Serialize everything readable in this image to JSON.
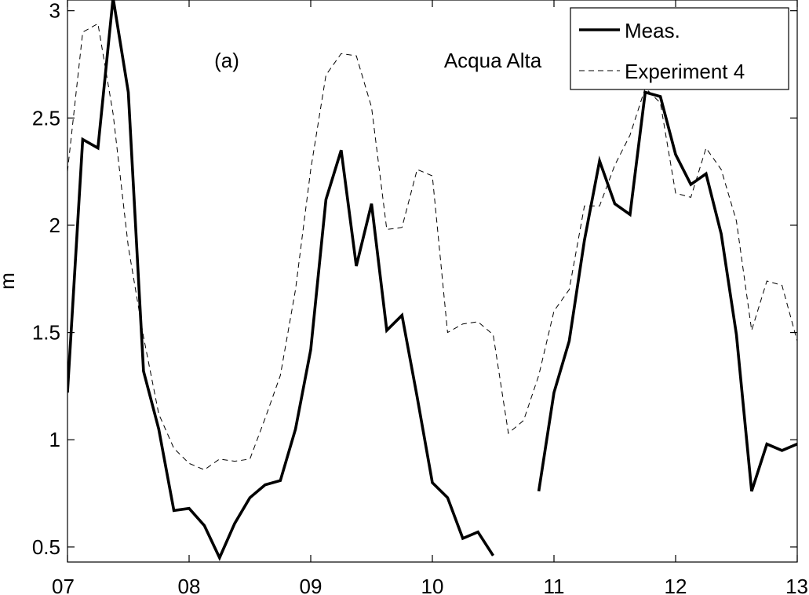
{
  "chart_data": {
    "type": "line",
    "annotations": [
      "(a)",
      "Acqua Alta"
    ],
    "xlabel": "",
    "ylabel": "m",
    "xlim": [
      7,
      13
    ],
    "ylim": [
      0.43,
      3.05
    ],
    "x_tick_labels": [
      "07",
      "08",
      "09",
      "10",
      "11",
      "12",
      "13"
    ],
    "y_tick_labels": [
      "0.5",
      "1",
      "1.5",
      "2",
      "2.5",
      "3"
    ],
    "y_tick_values": [
      0.5,
      1,
      1.5,
      2,
      2.5,
      3
    ],
    "grid": false,
    "legend": {
      "position": "top-right",
      "entries": [
        "Meas.",
        "Experiment 4"
      ]
    },
    "series": [
      {
        "name": "Meas.",
        "style": "solid-thick",
        "color": "#000000",
        "points": [
          [
            7.0,
            1.22
          ],
          [
            7.125,
            2.4
          ],
          [
            7.25,
            2.36
          ],
          [
            7.375,
            3.06
          ],
          [
            7.5,
            2.62
          ],
          [
            7.625,
            1.32
          ],
          [
            7.75,
            1.05
          ],
          [
            7.875,
            0.67
          ],
          [
            8.0,
            0.68
          ],
          [
            8.125,
            0.6
          ],
          [
            8.25,
            0.45
          ],
          [
            8.375,
            0.61
          ],
          [
            8.5,
            0.73
          ],
          [
            8.625,
            0.79
          ],
          [
            8.75,
            0.81
          ],
          [
            8.875,
            1.05
          ],
          [
            9.0,
            1.42
          ],
          [
            9.125,
            2.12
          ],
          [
            9.25,
            2.35
          ],
          [
            9.375,
            1.81
          ],
          [
            9.5,
            2.1
          ],
          [
            9.625,
            1.51
          ],
          [
            9.75,
            1.58
          ],
          [
            9.875,
            1.2
          ],
          [
            10.0,
            0.8
          ],
          [
            10.125,
            0.73
          ],
          [
            10.25,
            0.54
          ],
          [
            10.375,
            0.57
          ],
          [
            10.5,
            0.46
          ],
          null,
          [
            10.875,
            0.76
          ],
          [
            11.0,
            1.22
          ],
          [
            11.125,
            1.46
          ],
          [
            11.25,
            1.93
          ],
          [
            11.375,
            2.3
          ],
          [
            11.5,
            2.1
          ],
          [
            11.625,
            2.05
          ],
          [
            11.75,
            2.62
          ],
          [
            11.875,
            2.6
          ],
          [
            12.0,
            2.33
          ],
          [
            12.125,
            2.19
          ],
          [
            12.25,
            2.24
          ],
          [
            12.375,
            1.96
          ],
          [
            12.5,
            1.49
          ],
          [
            12.625,
            0.76
          ],
          [
            12.75,
            0.98
          ],
          [
            12.875,
            0.95
          ],
          [
            13.0,
            0.98
          ]
        ]
      },
      {
        "name": "Experiment 4",
        "style": "dashed-thin",
        "color": "#000000",
        "points": [
          [
            7.0,
            2.25
          ],
          [
            7.125,
            2.9
          ],
          [
            7.25,
            2.94
          ],
          [
            7.375,
            2.52
          ],
          [
            7.5,
            1.9
          ],
          [
            7.625,
            1.48
          ],
          [
            7.75,
            1.12
          ],
          [
            7.875,
            0.96
          ],
          [
            8.0,
            0.89
          ],
          [
            8.125,
            0.86
          ],
          [
            8.25,
            0.91
          ],
          [
            8.375,
            0.9
          ],
          [
            8.5,
            0.91
          ],
          [
            8.625,
            1.1
          ],
          [
            8.75,
            1.3
          ],
          [
            8.875,
            1.7
          ],
          [
            9.0,
            2.26
          ],
          [
            9.125,
            2.7
          ],
          [
            9.25,
            2.8
          ],
          [
            9.375,
            2.79
          ],
          [
            9.5,
            2.55
          ],
          [
            9.625,
            1.98
          ],
          [
            9.75,
            1.99
          ],
          [
            9.875,
            2.26
          ],
          [
            10.0,
            2.23
          ],
          [
            10.125,
            1.5
          ],
          [
            10.25,
            1.54
          ],
          [
            10.375,
            1.55
          ],
          [
            10.5,
            1.49
          ],
          [
            10.625,
            1.03
          ],
          [
            10.75,
            1.09
          ],
          [
            10.875,
            1.3
          ],
          [
            11.0,
            1.6
          ],
          [
            11.125,
            1.7
          ],
          [
            11.25,
            2.09
          ],
          [
            11.375,
            2.09
          ],
          [
            11.5,
            2.28
          ],
          [
            11.625,
            2.42
          ],
          [
            11.75,
            2.64
          ],
          [
            11.875,
            2.57
          ],
          [
            12.0,
            2.15
          ],
          [
            12.125,
            2.13
          ],
          [
            12.25,
            2.36
          ],
          [
            12.375,
            2.26
          ],
          [
            12.5,
            2.02
          ],
          [
            12.625,
            1.51
          ],
          [
            12.75,
            1.74
          ],
          [
            12.875,
            1.72
          ],
          [
            13.0,
            1.46
          ]
        ]
      }
    ]
  }
}
